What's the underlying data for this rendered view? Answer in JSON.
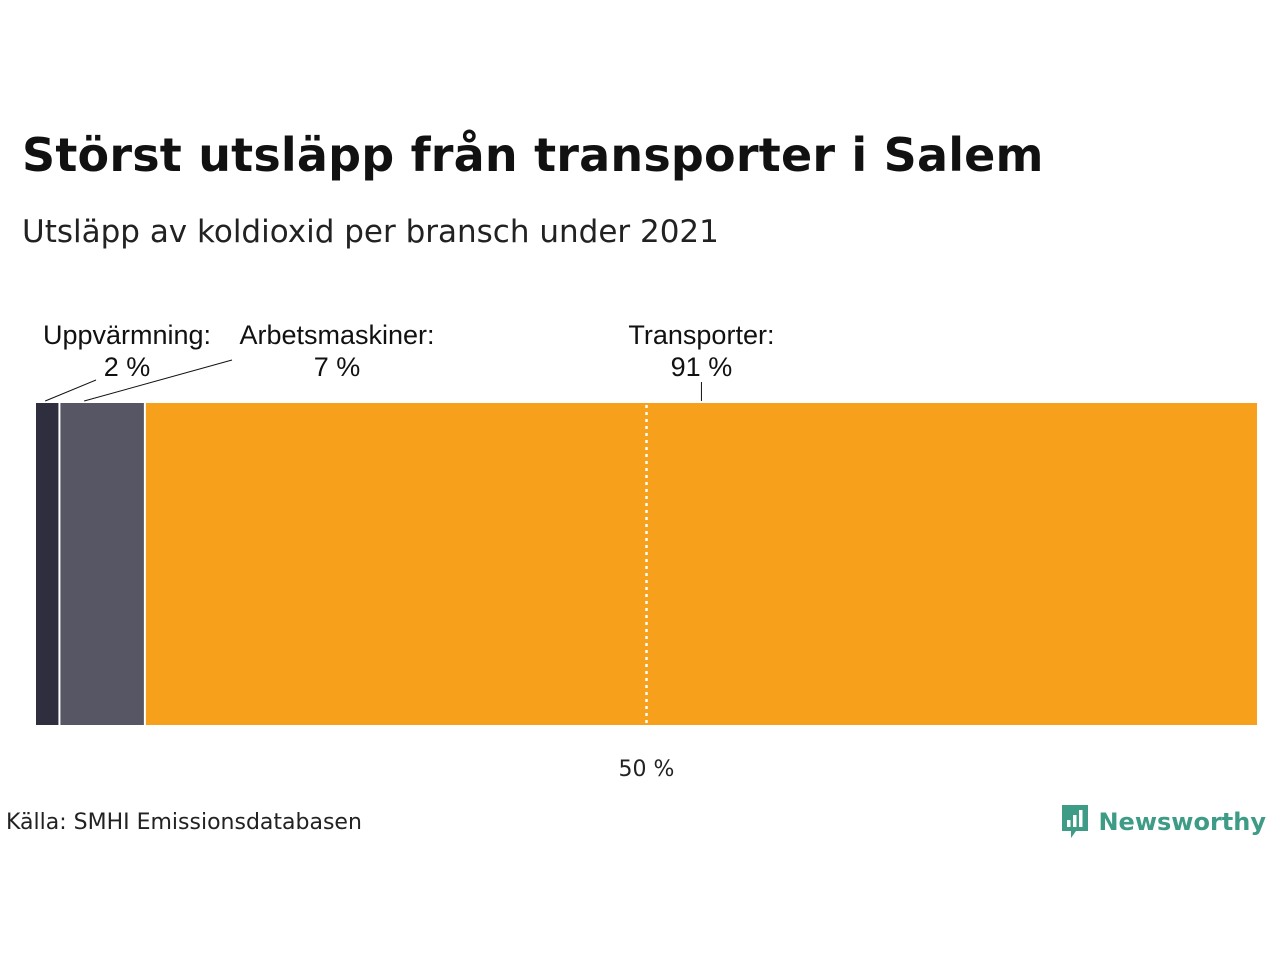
{
  "header": {
    "title": "Störst utsläpp från transporter i Salem",
    "subtitle": "Utsläpp av koldioxid per bransch under 2021"
  },
  "footer": {
    "source": "Källa: SMHI Emissionsdatabasen",
    "logo_text": "Newsworthy",
    "logo_icon": "newsworthy-chart-bubble-icon",
    "logo_color": "#3d9b86"
  },
  "chart_data": {
    "type": "bar",
    "orientation": "horizontal-stacked-100",
    "title": "Störst utsläpp från transporter i Salem",
    "subtitle": "Utsläpp av koldioxid per bransch under 2021",
    "xlim": [
      0,
      100
    ],
    "reference_line": {
      "value": 50,
      "label": "50 %",
      "style": "dotted"
    },
    "segments": [
      {
        "name": "Uppvärmning",
        "value": 2,
        "label_name": "Uppvärmning:",
        "label_value": "2 %",
        "color": "#2e2e3f"
      },
      {
        "name": "Arbetsmaskiner",
        "value": 7,
        "label_name": "Arbetsmaskiner:",
        "label_value": "7 %",
        "color": "#575665"
      },
      {
        "name": "Transporter",
        "value": 91,
        "label_name": "Transporter:",
        "label_value": "91 %",
        "color": "#f7a01b"
      }
    ]
  }
}
